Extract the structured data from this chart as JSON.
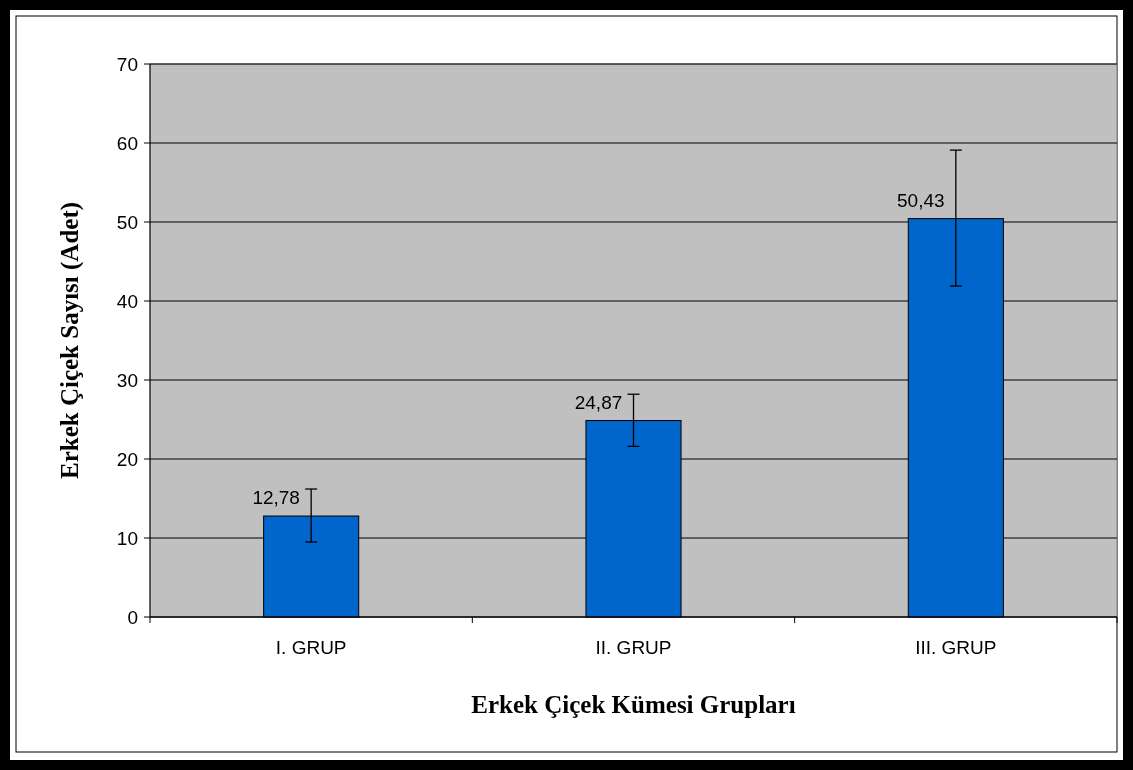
{
  "chart_data": {
    "type": "bar",
    "xlabel": "Erkek Çiçek Kümesi Grupları",
    "ylabel": "Erkek Çiçek Sayısı (Adet)",
    "categories": [
      "I. GRUP",
      "II. GRUP",
      "III. GRUP"
    ],
    "values": [
      12.78,
      24.87,
      50.43
    ],
    "color": "#0066cc",
    "value_labels": [
      "12,78",
      "24,87",
      "50,43"
    ],
    "errors": [
      [
        9.5,
        16.2
      ],
      [
        21.6,
        28.2
      ],
      [
        41.9,
        59.1
      ]
    ],
    "ylim": [
      0,
      70
    ],
    "yticks": [
      0,
      10,
      20,
      30,
      40,
      50,
      60,
      70
    ],
    "grid": "y"
  }
}
